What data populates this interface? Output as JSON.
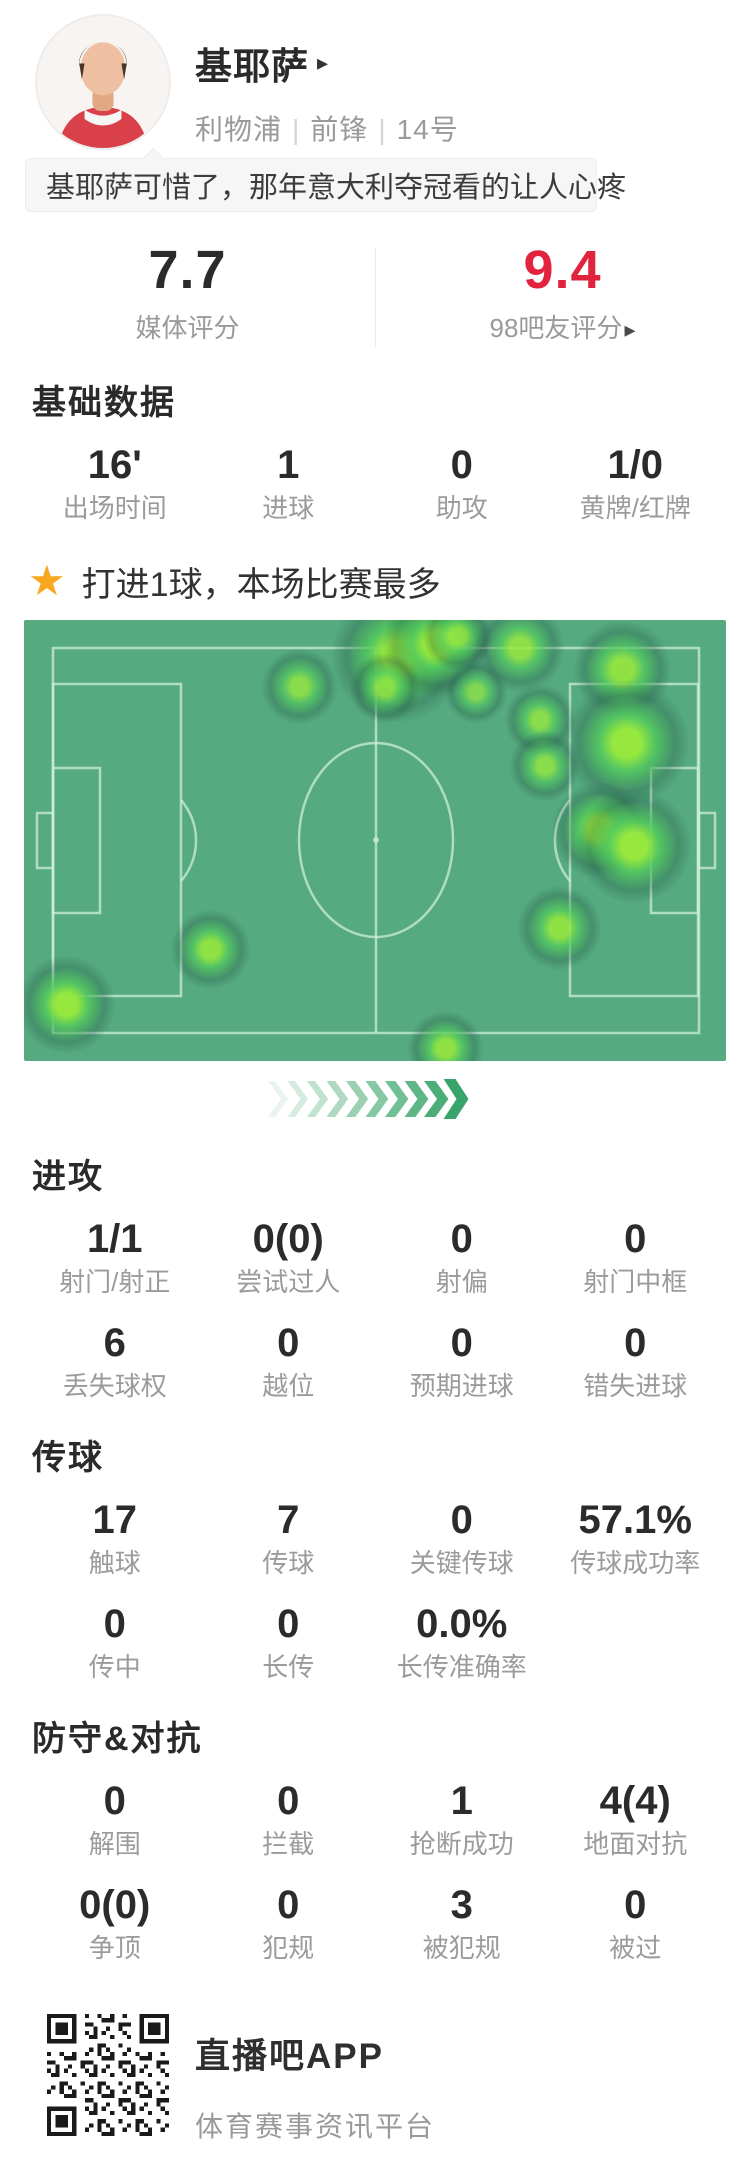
{
  "header": {
    "name": "基耶萨",
    "name_arrow": "▸",
    "team": "利物浦",
    "separator": "|",
    "position": "前锋",
    "number": "14号"
  },
  "banner": {
    "text": "基耶萨可惜了，那年意大利夺冠看的让人心疼"
  },
  "ratings": {
    "media": {
      "value": "7.7",
      "label": "媒体评分"
    },
    "fans": {
      "value": "9.4",
      "label": "98吧友评分",
      "arrow": "▸",
      "color": "#e1233d"
    }
  },
  "basic": {
    "title": "基础数据",
    "rows": [
      [
        {
          "value": "16'",
          "label": "出场时间"
        },
        {
          "value": "1",
          "label": "进球"
        },
        {
          "value": "0",
          "label": "助攻"
        },
        {
          "value": "1/0",
          "label": "黄牌/红牌"
        }
      ]
    ]
  },
  "highlight": {
    "icon": "star-icon",
    "star_glyph": "★",
    "text": "打进1球，本场比赛最多"
  },
  "heatmap": {
    "pitch_color": "#55aa7f",
    "line_color": "#cdeeda",
    "blob_core_color": "#96e83e",
    "blob_mid_color": "#52c95d",
    "blob_ring_color": "#1e5040",
    "points": [
      {
        "x": 0.533,
        "y": 0.082,
        "r": 30,
        "a": 1.0
      },
      {
        "x": 0.587,
        "y": 0.054,
        "r": 24,
        "a": 1.0
      },
      {
        "x": 0.618,
        "y": 0.036,
        "r": 16,
        "a": 0.8
      },
      {
        "x": 0.707,
        "y": 0.063,
        "r": 20,
        "a": 0.85
      },
      {
        "x": 0.852,
        "y": 0.113,
        "r": 22,
        "a": 0.9
      },
      {
        "x": 0.393,
        "y": 0.15,
        "r": 17,
        "a": 0.8
      },
      {
        "x": 0.514,
        "y": 0.154,
        "r": 16,
        "a": 0.8
      },
      {
        "x": 0.644,
        "y": 0.163,
        "r": 14,
        "a": 0.7
      },
      {
        "x": 0.735,
        "y": 0.227,
        "r": 16,
        "a": 0.8
      },
      {
        "x": 0.859,
        "y": 0.279,
        "r": 28,
        "a": 1.0
      },
      {
        "x": 0.742,
        "y": 0.331,
        "r": 16,
        "a": 0.8
      },
      {
        "x": 0.821,
        "y": 0.476,
        "r": 22,
        "a": 1.0
      },
      {
        "x": 0.869,
        "y": 0.512,
        "r": 26,
        "a": 1.0
      },
      {
        "x": 0.763,
        "y": 0.698,
        "r": 19,
        "a": 0.9
      },
      {
        "x": 0.266,
        "y": 0.748,
        "r": 18,
        "a": 0.9
      },
      {
        "x": 0.06,
        "y": 0.871,
        "r": 22,
        "a": 1.0
      },
      {
        "x": 0.6,
        "y": 0.971,
        "r": 17,
        "a": 0.9
      }
    ]
  },
  "chevrons": {
    "count": 10,
    "start_color": "#eaf4ee",
    "end_color": "#38a469"
  },
  "attack": {
    "title": "进攻",
    "rows": [
      [
        {
          "value": "1/1",
          "label": "射门/射正"
        },
        {
          "value": "0(0)",
          "label": "尝试过人"
        },
        {
          "value": "0",
          "label": "射偏"
        },
        {
          "value": "0",
          "label": "射门中框"
        }
      ],
      [
        {
          "value": "6",
          "label": "丢失球权"
        },
        {
          "value": "0",
          "label": "越位"
        },
        {
          "value": "0",
          "label": "预期进球"
        },
        {
          "value": "0",
          "label": "错失进球"
        }
      ]
    ]
  },
  "passing": {
    "title": "传球",
    "rows": [
      [
        {
          "value": "17",
          "label": "触球"
        },
        {
          "value": "7",
          "label": "传球"
        },
        {
          "value": "0",
          "label": "关键传球"
        },
        {
          "value": "57.1%",
          "label": "传球成功率"
        }
      ],
      [
        {
          "value": "0",
          "label": "传中"
        },
        {
          "value": "0",
          "label": "长传"
        },
        {
          "value": "0.0%",
          "label": "长传准确率"
        }
      ]
    ]
  },
  "defense": {
    "title": "防守&对抗",
    "rows": [
      [
        {
          "value": "0",
          "label": "解围"
        },
        {
          "value": "0",
          "label": "拦截"
        },
        {
          "value": "1",
          "label": "抢断成功"
        },
        {
          "value": "4(4)",
          "label": "地面对抗"
        }
      ],
      [
        {
          "value": "0(0)",
          "label": "争顶"
        },
        {
          "value": "0",
          "label": "犯规"
        },
        {
          "value": "3",
          "label": "被犯规"
        },
        {
          "value": "0",
          "label": "被过"
        }
      ]
    ]
  },
  "footer": {
    "app_name": "直播吧APP",
    "slogan": "体育赛事资讯平台"
  }
}
